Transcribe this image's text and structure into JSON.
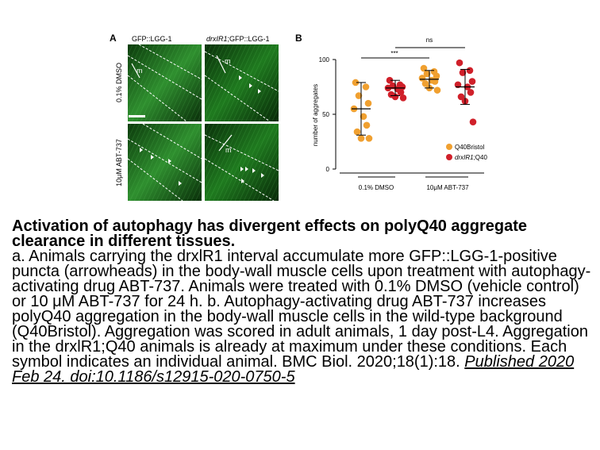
{
  "panel_a": {
    "letter": "A",
    "col1_label": "GFP::LGG-1",
    "col2_label_italic": "drxIR1",
    "col2_label_rest": ";GFP::LGG-1",
    "row1_label": "0.1% DMSO",
    "row2_label": "10μM ABT-737",
    "muscle_label": "m"
  },
  "panel_b": {
    "letter": "B",
    "sig_left": "***",
    "sig_right": "ns",
    "legend": [
      {
        "label": "Q40Bristol",
        "italic_prefix": "",
        "color": "#f0a030"
      },
      {
        "label": ";Q40",
        "italic_prefix": "drxIR1",
        "color": "#d0202a"
      }
    ]
  },
  "chart_data": {
    "type": "scatter",
    "ylabel": "number of aggregates",
    "ylim": [
      0,
      100
    ],
    "yticks": [
      0,
      50,
      100
    ],
    "groups": [
      "0.1% DMSO",
      "10μM ABT-737"
    ],
    "series": [
      {
        "name": "Q40Bristol",
        "group": "0.1% DMSO",
        "values": [
          79,
          75,
          67,
          60,
          55,
          48,
          40,
          34,
          28,
          28
        ],
        "mean": 55,
        "sd": 24
      },
      {
        "name": "drxIR1;Q40",
        "group": "0.1% DMSO",
        "values": [
          81,
          77,
          76,
          75,
          74,
          73,
          70,
          68,
          66,
          65
        ],
        "mean": 74,
        "sd": 7
      },
      {
        "name": "Q40Bristol",
        "group": "10μM ABT-737",
        "values": [
          92,
          89,
          87,
          85,
          83,
          81,
          80,
          78,
          74,
          72
        ],
        "mean": 82,
        "sd": 8
      },
      {
        "name": "drxIR1;Q40",
        "group": "10μM ABT-737",
        "values": [
          97,
          90,
          88,
          80,
          77,
          75,
          70,
          66,
          62,
          43
        ],
        "mean": 75,
        "sd": 16
      }
    ]
  },
  "caption": {
    "title": "Activation of autophagy has divergent effects on polyQ40 aggregate clearance in different tissues.",
    "body": "a. Animals carrying the drxlR1 interval accumulate more GFP::LGG-1-positive puncta (arrowheads) in the body-wall muscle cells upon treatment with autophagy-activating drug ABT-737. Animals were treated with 0.1% DMSO (vehicle control) or 10 μM ABT-737 for 24 h. b. Autophagy-activating drug ABT-737 increases polyQ40 aggregation in the body-wall muscle cells in the wild-type background (Q40Bristol). Aggregation was scored in adult animals, 1 day post-L4. Aggregation in the drxlR1;Q40 animals is already at maximum under these conditions. Each symbol indicates an individual animal. BMC Biol. 2020;18(1):18. ",
    "link": "Published 2020 Feb 24. doi:10.1186/s12915-020-0750-5"
  }
}
